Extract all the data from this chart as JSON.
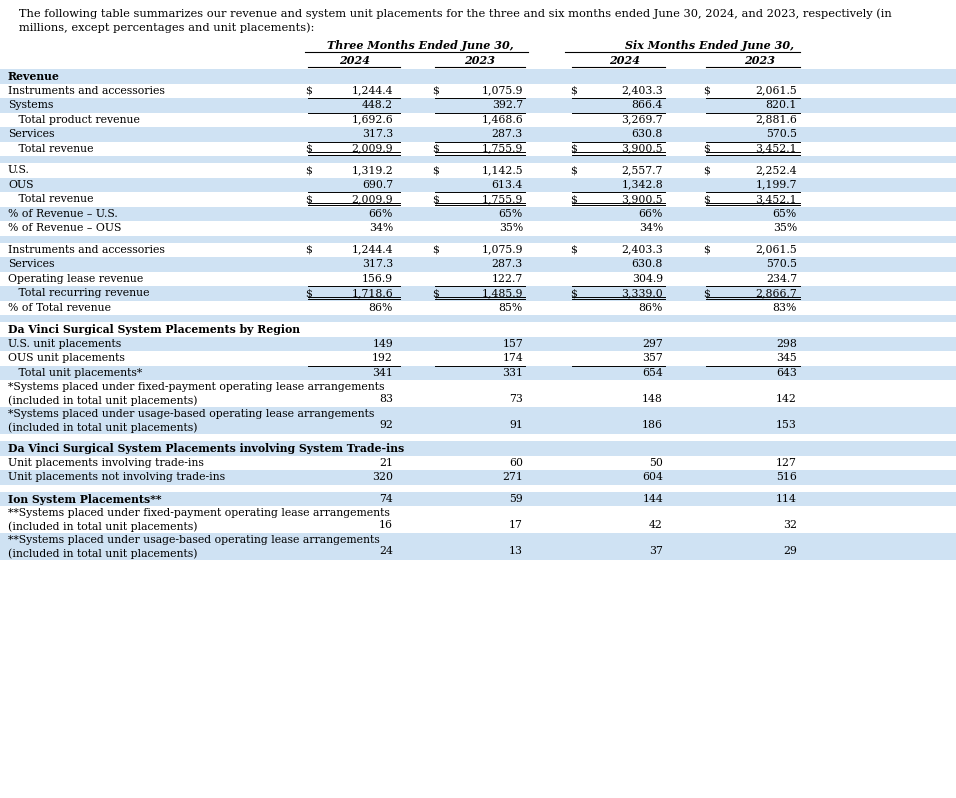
{
  "intro_text": "   The following table summarizes our revenue and system unit placements for the three and six months ended June 30, 2024, and 2023, respectively (in\n   millions, except percentages and unit placements):",
  "col_headers": [
    "Three Months Ended June 30,",
    "Six Months Ended June 30,"
  ],
  "sub_headers": [
    "2024",
    "2023",
    "2024",
    "2023"
  ],
  "rows": [
    {
      "label": "Revenue",
      "indent": 0,
      "bold": true,
      "bg": "#cfe2f3",
      "values": [
        "",
        "",
        "",
        ""
      ],
      "dollar": [
        false,
        false,
        false,
        false
      ]
    },
    {
      "label": "Instruments and accessories",
      "indent": 0,
      "bold": false,
      "bg": "#ffffff",
      "values": [
        "1,244.4",
        "1,075.9",
        "2,403.3",
        "2,061.5"
      ],
      "dollar": [
        true,
        true,
        true,
        true
      ]
    },
    {
      "label": "Systems",
      "indent": 0,
      "bold": false,
      "bg": "#cfe2f3",
      "values": [
        "448.2",
        "392.7",
        "866.4",
        "820.1"
      ],
      "dollar": [
        false,
        false,
        false,
        false
      ],
      "top_border": true
    },
    {
      "label": "   Total product revenue",
      "indent": 0,
      "bold": false,
      "bg": "#ffffff",
      "values": [
        "1,692.6",
        "1,468.6",
        "3,269.7",
        "2,881.6"
      ],
      "dollar": [
        false,
        false,
        false,
        false
      ],
      "top_border": true
    },
    {
      "label": "Services",
      "indent": 0,
      "bold": false,
      "bg": "#cfe2f3",
      "values": [
        "317.3",
        "287.3",
        "630.8",
        "570.5"
      ],
      "dollar": [
        false,
        false,
        false,
        false
      ]
    },
    {
      "label": "   Total revenue",
      "indent": 0,
      "bold": false,
      "bg": "#ffffff",
      "values": [
        "2,009.9",
        "1,755.9",
        "3,900.5",
        "3,452.1"
      ],
      "dollar": [
        true,
        true,
        true,
        true
      ],
      "top_border": true,
      "double_bottom": true
    },
    {
      "label": "",
      "indent": 0,
      "bold": false,
      "bg": "#cfe2f3",
      "values": [
        "",
        "",
        "",
        ""
      ],
      "dollar": [
        false,
        false,
        false,
        false
      ],
      "spacer": true
    },
    {
      "label": "U.S.",
      "indent": 0,
      "bold": false,
      "bg": "#ffffff",
      "values": [
        "1,319.2",
        "1,142.5",
        "2,557.7",
        "2,252.4"
      ],
      "dollar": [
        true,
        true,
        true,
        true
      ]
    },
    {
      "label": "OUS",
      "indent": 0,
      "bold": false,
      "bg": "#cfe2f3",
      "values": [
        "690.7",
        "613.4",
        "1,342.8",
        "1,199.7"
      ],
      "dollar": [
        false,
        false,
        false,
        false
      ]
    },
    {
      "label": "   Total revenue",
      "indent": 0,
      "bold": false,
      "bg": "#ffffff",
      "values": [
        "2,009.9",
        "1,755.9",
        "3,900.5",
        "3,452.1"
      ],
      "dollar": [
        true,
        true,
        true,
        true
      ],
      "top_border": true,
      "double_bottom": true
    },
    {
      "label": "% of Revenue – U.S.",
      "indent": 0,
      "bold": false,
      "bg": "#cfe2f3",
      "values": [
        "66%",
        "65%",
        "66%",
        "65%"
      ],
      "dollar": [
        false,
        false,
        false,
        false
      ]
    },
    {
      "label": "% of Revenue – OUS",
      "indent": 0,
      "bold": false,
      "bg": "#ffffff",
      "values": [
        "34%",
        "35%",
        "34%",
        "35%"
      ],
      "dollar": [
        false,
        false,
        false,
        false
      ]
    },
    {
      "label": "",
      "indent": 0,
      "bold": false,
      "bg": "#cfe2f3",
      "values": [
        "",
        "",
        "",
        ""
      ],
      "dollar": [
        false,
        false,
        false,
        false
      ],
      "spacer": true
    },
    {
      "label": "Instruments and accessories",
      "indent": 0,
      "bold": false,
      "bg": "#ffffff",
      "values": [
        "1,244.4",
        "1,075.9",
        "2,403.3",
        "2,061.5"
      ],
      "dollar": [
        true,
        true,
        true,
        true
      ]
    },
    {
      "label": "Services",
      "indent": 0,
      "bold": false,
      "bg": "#cfe2f3",
      "values": [
        "317.3",
        "287.3",
        "630.8",
        "570.5"
      ],
      "dollar": [
        false,
        false,
        false,
        false
      ]
    },
    {
      "label": "Operating lease revenue",
      "indent": 0,
      "bold": false,
      "bg": "#ffffff",
      "values": [
        "156.9",
        "122.7",
        "304.9",
        "234.7"
      ],
      "dollar": [
        false,
        false,
        false,
        false
      ]
    },
    {
      "label": "   Total recurring revenue",
      "indent": 0,
      "bold": false,
      "bg": "#cfe2f3",
      "values": [
        "1,718.6",
        "1,485.9",
        "3,339.0",
        "2,866.7"
      ],
      "dollar": [
        true,
        true,
        true,
        true
      ],
      "top_border": true,
      "double_bottom": true
    },
    {
      "label": "% of Total revenue",
      "indent": 0,
      "bold": false,
      "bg": "#ffffff",
      "values": [
        "86%",
        "85%",
        "86%",
        "83%"
      ],
      "dollar": [
        false,
        false,
        false,
        false
      ]
    },
    {
      "label": "",
      "indent": 0,
      "bold": false,
      "bg": "#cfe2f3",
      "values": [
        "",
        "",
        "",
        ""
      ],
      "dollar": [
        false,
        false,
        false,
        false
      ],
      "spacer": true
    },
    {
      "label": "Da Vinci Surgical System Placements by Region",
      "indent": 0,
      "bold": true,
      "bg": "#ffffff",
      "values": [
        "",
        "",
        "",
        ""
      ],
      "dollar": [
        false,
        false,
        false,
        false
      ]
    },
    {
      "label": "U.S. unit placements",
      "indent": 0,
      "bold": false,
      "bg": "#cfe2f3",
      "values": [
        "149",
        "157",
        "297",
        "298"
      ],
      "dollar": [
        false,
        false,
        false,
        false
      ]
    },
    {
      "label": "OUS unit placements",
      "indent": 0,
      "bold": false,
      "bg": "#ffffff",
      "values": [
        "192",
        "174",
        "357",
        "345"
      ],
      "dollar": [
        false,
        false,
        false,
        false
      ]
    },
    {
      "label": "   Total unit placements*",
      "indent": 0,
      "bold": false,
      "bg": "#cfe2f3",
      "values": [
        "341",
        "331",
        "654",
        "643"
      ],
      "dollar": [
        false,
        false,
        false,
        false
      ],
      "top_border": true
    },
    {
      "label": "*Systems placed under fixed-payment operating lease arrangements\n(included in total unit placements)",
      "indent": 0,
      "bold": false,
      "bg": "#ffffff",
      "values": [
        "83",
        "73",
        "148",
        "142"
      ],
      "dollar": [
        false,
        false,
        false,
        false
      ],
      "twoline": true
    },
    {
      "label": "*Systems placed under usage-based operating lease arrangements\n(included in total unit placements)",
      "indent": 0,
      "bold": false,
      "bg": "#cfe2f3",
      "values": [
        "92",
        "91",
        "186",
        "153"
      ],
      "dollar": [
        false,
        false,
        false,
        false
      ],
      "twoline": true
    },
    {
      "label": "",
      "indent": 0,
      "bold": false,
      "bg": "#ffffff",
      "values": [
        "",
        "",
        "",
        ""
      ],
      "dollar": [
        false,
        false,
        false,
        false
      ],
      "spacer": true
    },
    {
      "label": "Da Vinci Surgical System Placements involving System Trade-ins",
      "indent": 0,
      "bold": true,
      "bg": "#cfe2f3",
      "values": [
        "",
        "",
        "",
        ""
      ],
      "dollar": [
        false,
        false,
        false,
        false
      ]
    },
    {
      "label": "Unit placements involving trade-ins",
      "indent": 0,
      "bold": false,
      "bg": "#ffffff",
      "values": [
        "21",
        "60",
        "50",
        "127"
      ],
      "dollar": [
        false,
        false,
        false,
        false
      ]
    },
    {
      "label": "Unit placements not involving trade-ins",
      "indent": 0,
      "bold": false,
      "bg": "#cfe2f3",
      "values": [
        "320",
        "271",
        "604",
        "516"
      ],
      "dollar": [
        false,
        false,
        false,
        false
      ]
    },
    {
      "label": "",
      "indent": 0,
      "bold": false,
      "bg": "#ffffff",
      "values": [
        "",
        "",
        "",
        ""
      ],
      "dollar": [
        false,
        false,
        false,
        false
      ],
      "spacer": true
    },
    {
      "label": "Ion System Placements**",
      "indent": 0,
      "bold": true,
      "bg": "#cfe2f3",
      "values": [
        "74",
        "59",
        "144",
        "114"
      ],
      "dollar": [
        false,
        false,
        false,
        false
      ]
    },
    {
      "label": "**Systems placed under fixed-payment operating lease arrangements\n(included in total unit placements)",
      "indent": 0,
      "bold": false,
      "bg": "#ffffff",
      "values": [
        "16",
        "17",
        "42",
        "32"
      ],
      "dollar": [
        false,
        false,
        false,
        false
      ],
      "twoline": true
    },
    {
      "label": "**Systems placed under usage-based operating lease arrangements\n(included in total unit placements)",
      "indent": 0,
      "bold": false,
      "bg": "#cfe2f3",
      "values": [
        "24",
        "13",
        "37",
        "29"
      ],
      "dollar": [
        false,
        false,
        false,
        false
      ],
      "twoline": true
    }
  ],
  "bg_color": "#ffffff",
  "light_blue": "#cfe2f3",
  "font_size": 7.8,
  "intro_font_size": 8.2,
  "header_font_size": 8.0
}
